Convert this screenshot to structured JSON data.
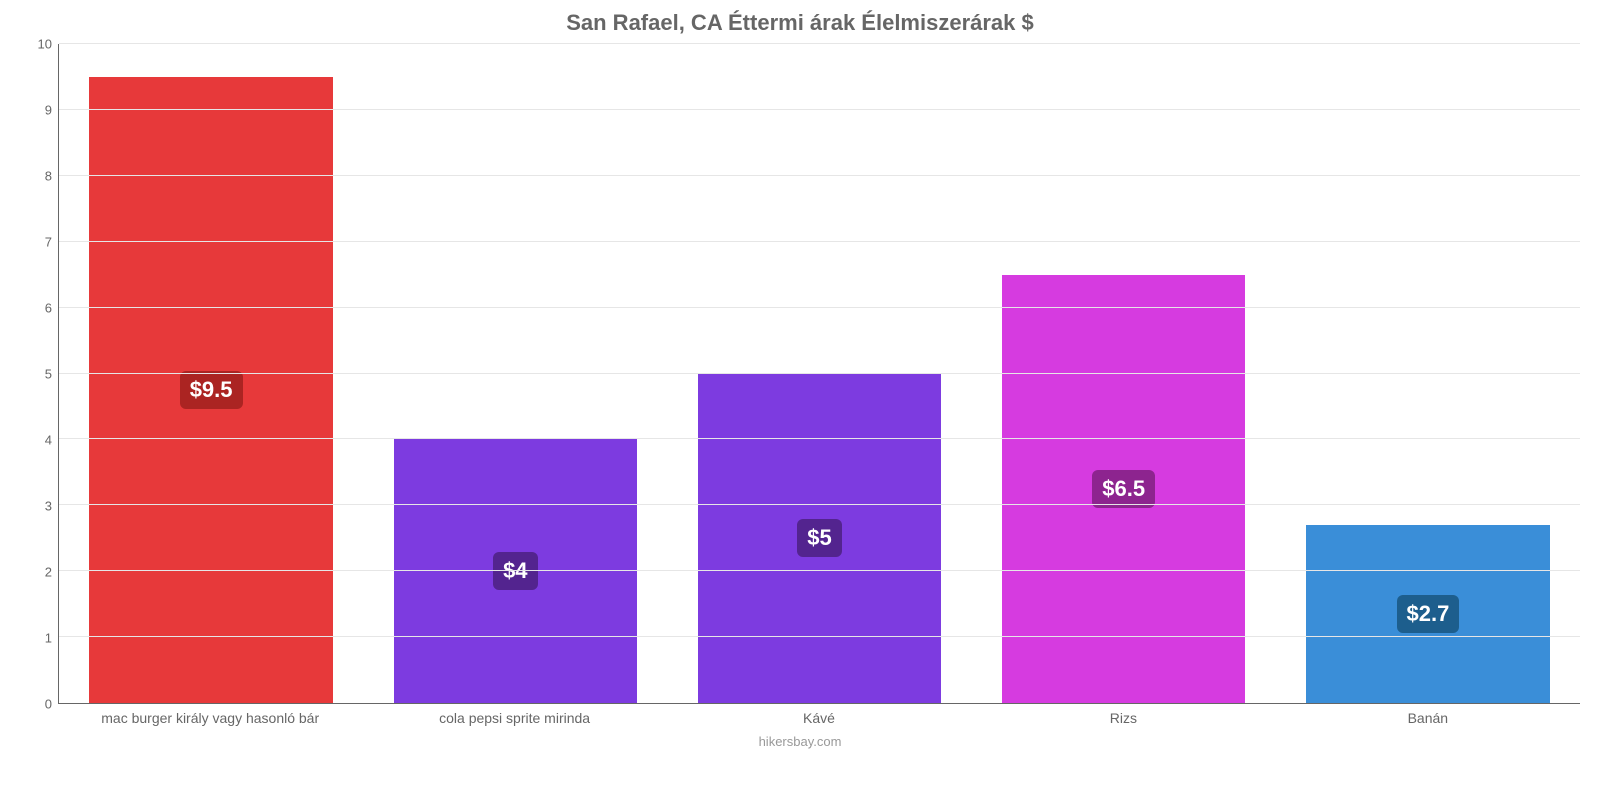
{
  "chart": {
    "type": "bar",
    "title": "San Rafael, CA Éttermi árak Élelmiszerárak $",
    "title_fontsize": 22,
    "title_color": "#666666",
    "footer": "hikersbay.com",
    "footer_fontsize": 13,
    "footer_color": "#999999",
    "background_color": "#ffffff",
    "axis_color": "#666666",
    "grid_color": "#e6e6e6",
    "bar_width_pct": 80,
    "y": {
      "min": 0,
      "max": 10,
      "tick_step": 1,
      "label_fontsize": 13,
      "label_color": "#666666"
    },
    "x_label_fontsize": 14,
    "x_label_color": "#666666",
    "value_label_fontsize": 22,
    "value_label_color": "#ffffff",
    "categories": [
      {
        "label": "mac burger király vagy hasonló bár",
        "value": 9.5,
        "display": "$9.5",
        "bar_color": "#e7393a",
        "badge_color": "#ab2422"
      },
      {
        "label": "cola pepsi sprite mirinda",
        "value": 4.0,
        "display": "$4",
        "bar_color": "#7d3be0",
        "badge_color": "#53248f"
      },
      {
        "label": "Kávé",
        "value": 5.0,
        "display": "$5",
        "bar_color": "#7d3be0",
        "badge_color": "#53248f"
      },
      {
        "label": "Rizs",
        "value": 6.5,
        "display": "$6.5",
        "bar_color": "#d63be0",
        "badge_color": "#8d248f"
      },
      {
        "label": "Banán",
        "value": 2.7,
        "display": "$2.7",
        "bar_color": "#3a8ed8",
        "badge_color": "#1d5e8d"
      }
    ]
  }
}
